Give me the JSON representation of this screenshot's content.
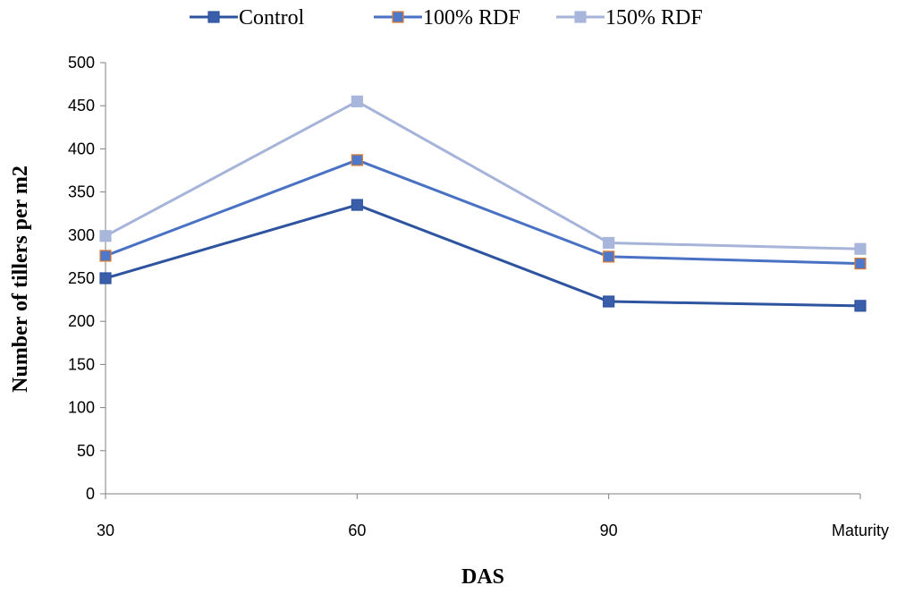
{
  "chart_data": {
    "type": "line",
    "categories": [
      "30",
      "60",
      "90",
      "Maturity"
    ],
    "series": [
      {
        "name": "Control",
        "values": [
          250,
          335,
          223,
          218
        ],
        "color": "#2E54A0",
        "marker_fill": "#3A5EAA",
        "marker_stroke": "#2E54A0"
      },
      {
        "name": "100% RDF",
        "values": [
          276,
          387,
          275,
          267
        ],
        "color": "#4A72C4",
        "marker_fill": "#4F78C8",
        "marker_stroke": "#E07A2C"
      },
      {
        "name": "150% RDF",
        "values": [
          299,
          455,
          291,
          284
        ],
        "color": "#A6B4DA",
        "marker_fill": "#A9B6DB",
        "marker_stroke": "#A9B6DB"
      }
    ],
    "xlabel": "DAS",
    "ylabel": "Number of tillers per m2",
    "ylim": [
      0,
      500
    ],
    "yticks": [
      0,
      50,
      100,
      150,
      200,
      250,
      300,
      350,
      400,
      450,
      500
    ],
    "grid": false,
    "legend_position": "top"
  }
}
